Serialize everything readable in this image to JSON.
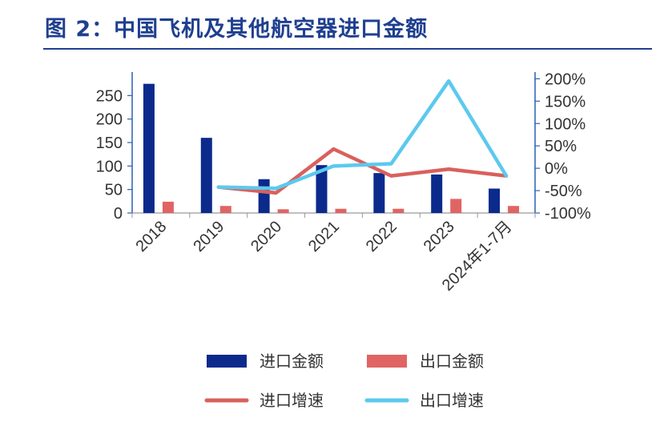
{
  "title": "图 2：中国飞机及其他航空器进口金额",
  "chart_data": {
    "type": "bar",
    "categories": [
      "2018",
      "2019",
      "2020",
      "2021",
      "2022",
      "2023",
      "2024年1-7月"
    ],
    "series": [
      {
        "name": "进口金额",
        "kind": "bar",
        "axis": "left",
        "color": "#0b2a8c",
        "values": [
          275,
          160,
          72,
          102,
          85,
          82,
          52
        ]
      },
      {
        "name": "出口金额",
        "kind": "bar",
        "axis": "left",
        "color": "#e06464",
        "values": [
          24,
          15,
          8,
          9,
          9,
          30,
          15
        ]
      },
      {
        "name": "进口增速",
        "kind": "line",
        "axis": "right",
        "color": "#d9605c",
        "values": [
          null,
          -42,
          -55,
          43,
          -17,
          -2,
          -17
        ]
      },
      {
        "name": "出口增速",
        "kind": "line",
        "axis": "right",
        "color": "#5cc9ee",
        "values": [
          null,
          -42,
          -45,
          5,
          10,
          195,
          -17
        ]
      }
    ],
    "left_axis": {
      "ylim": [
        0,
        300
      ],
      "ticks": [
        0,
        50,
        100,
        150,
        200,
        250
      ],
      "tick_labels": [
        "0",
        "50",
        "100",
        "150",
        "200",
        "250"
      ]
    },
    "right_axis": {
      "ylim": [
        -100,
        215
      ],
      "ticks": [
        -100,
        -50,
        0,
        50,
        100,
        150,
        200
      ],
      "tick_labels": [
        "-100%",
        "-50%",
        "0%",
        "50%",
        "100%",
        "150%",
        "200%"
      ]
    },
    "grid": false,
    "legend_position": "bottom"
  }
}
